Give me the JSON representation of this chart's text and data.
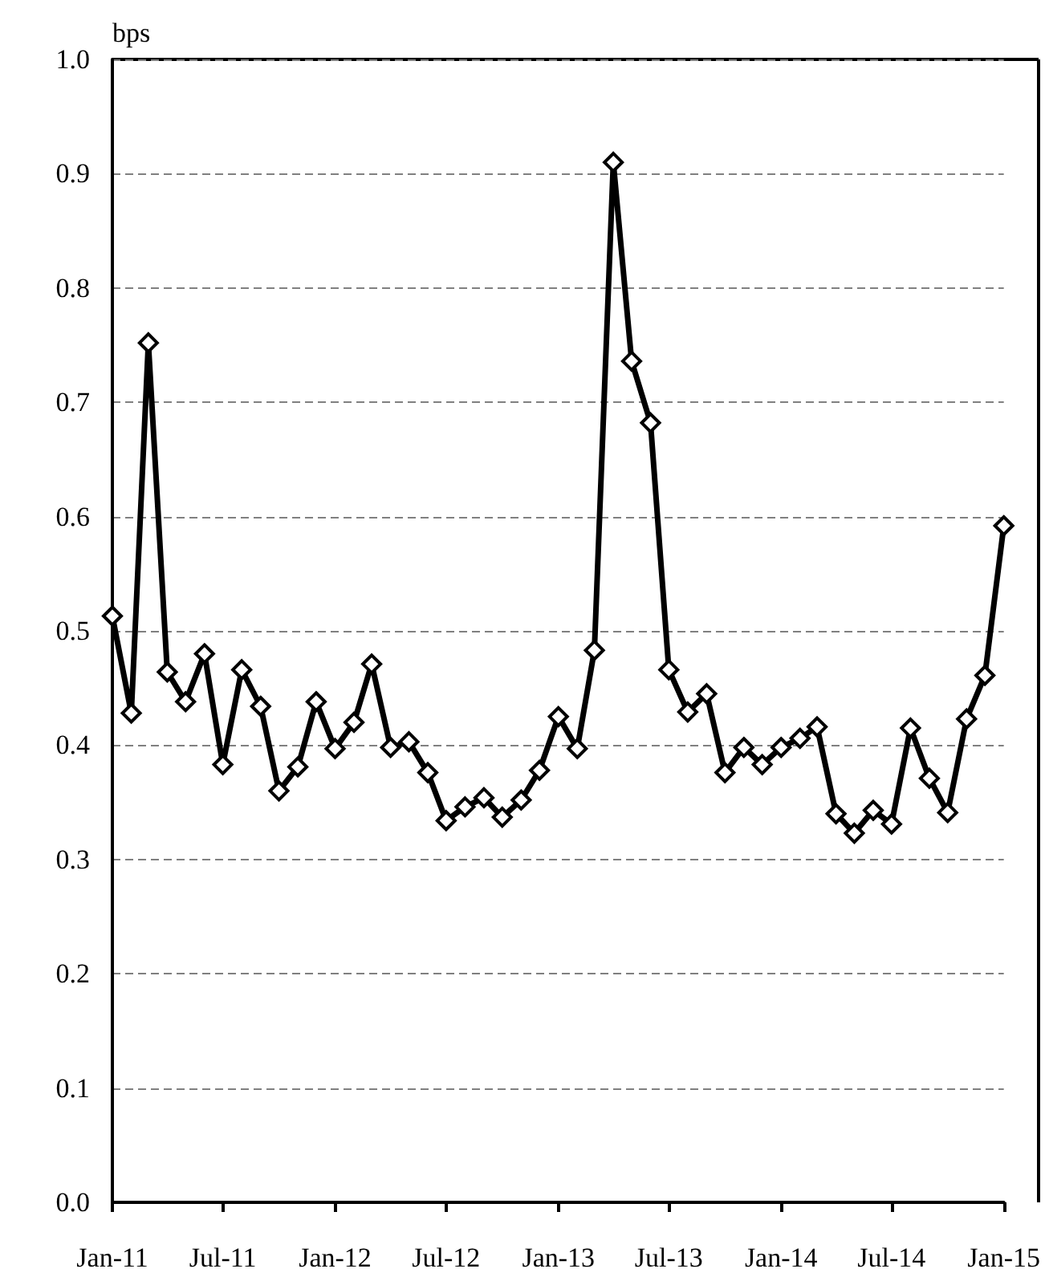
{
  "chart_data": {
    "type": "line",
    "ylabel": "bps",
    "x": [
      "2011-01",
      "2011-02",
      "2011-03",
      "2011-04",
      "2011-05",
      "2011-06",
      "2011-07",
      "2011-08",
      "2011-09",
      "2011-10",
      "2011-11",
      "2011-12",
      "2012-01",
      "2012-02",
      "2012-03",
      "2012-04",
      "2012-05",
      "2012-06",
      "2012-07",
      "2012-08",
      "2012-09",
      "2012-10",
      "2012-11",
      "2012-12",
      "2013-01",
      "2013-02",
      "2013-03",
      "2013-04",
      "2013-05",
      "2013-06",
      "2013-07",
      "2013-08",
      "2013-09",
      "2013-10",
      "2013-11",
      "2013-12",
      "2014-01",
      "2014-02",
      "2014-03",
      "2014-04",
      "2014-05",
      "2014-06",
      "2014-07",
      "2014-08",
      "2014-09",
      "2014-10",
      "2014-11",
      "2014-12",
      "2015-01"
    ],
    "series": [
      {
        "color": "#000000",
        "values": [
          0.513,
          0.428,
          0.752,
          0.464,
          0.438,
          0.48,
          0.383,
          0.466,
          0.434,
          0.36,
          0.381,
          0.438,
          0.397,
          0.42,
          0.471,
          0.398,
          0.403,
          0.376,
          0.334,
          0.346,
          0.354,
          0.337,
          0.352,
          0.378,
          0.425,
          0.397,
          0.483,
          0.91,
          0.736,
          0.682,
          0.466,
          0.429,
          0.445,
          0.376,
          0.398,
          0.383,
          0.398,
          0.406,
          0.416,
          0.34,
          0.323,
          0.343,
          0.331,
          0.415,
          0.371,
          0.341,
          0.423,
          0.461,
          0.592
        ]
      }
    ],
    "xlim": [
      "2011-01",
      "2015-01"
    ],
    "xticks": [
      {
        "value": "2011-01",
        "label": "Jan-11"
      },
      {
        "value": "2011-07",
        "label": "Jul-11"
      },
      {
        "value": "2012-01",
        "label": "Jan-12"
      },
      {
        "value": "2012-07",
        "label": "Jul-12"
      },
      {
        "value": "2013-01",
        "label": "Jan-13"
      },
      {
        "value": "2013-07",
        "label": "Jul-13"
      },
      {
        "value": "2014-01",
        "label": "Jan-14"
      },
      {
        "value": "2014-07",
        "label": "Jul-14"
      },
      {
        "value": "2015-01",
        "label": "Jan-15"
      }
    ],
    "ylim": [
      0,
      1
    ],
    "yticks": [
      {
        "value": 0,
        "label": "0.0"
      },
      {
        "value": 0.1,
        "label": "0.1"
      },
      {
        "value": 0.2,
        "label": "0.2"
      },
      {
        "value": 0.3,
        "label": "0.3"
      },
      {
        "value": 0.4,
        "label": "0.4"
      },
      {
        "value": 0.5,
        "label": "0.5"
      },
      {
        "value": 0.6,
        "label": "0.6"
      },
      {
        "value": 0.7,
        "label": "0.7"
      },
      {
        "value": 0.8,
        "label": "0.8"
      },
      {
        "value": 0.9,
        "label": "0.9"
      },
      {
        "value": 1,
        "label": "1.0"
      }
    ],
    "grid": "y",
    "marker": "diamond",
    "line_style": "solid"
  }
}
